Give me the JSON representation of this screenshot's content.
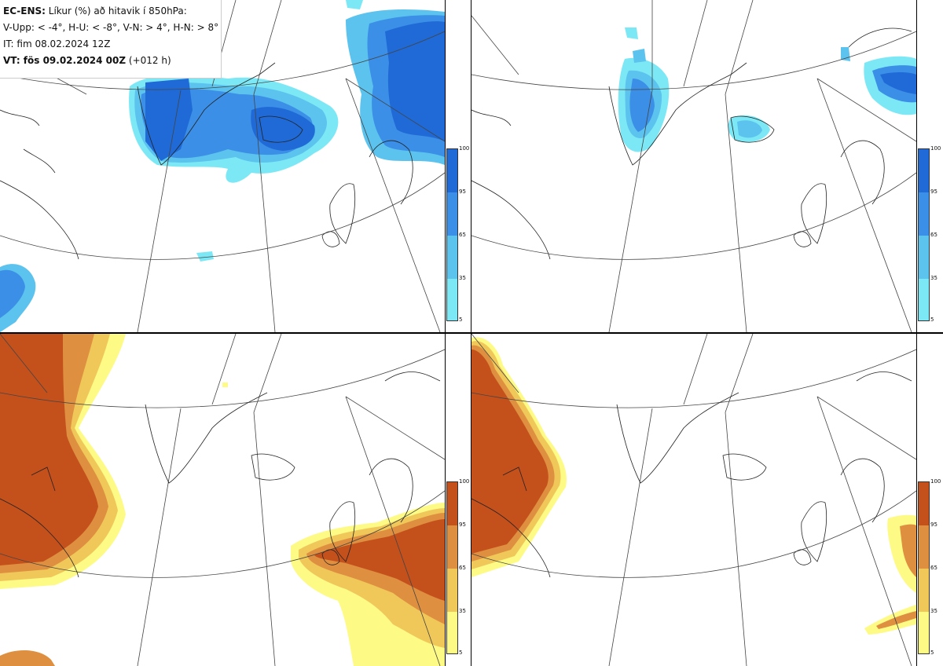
{
  "legend": {
    "line1_label": "EC-ENS:",
    "line1_text": "Líkur (%) að hitavik í 850hPa:",
    "line2": "V-Upp: < -4°, H-U: < -8°, V-N: > 4°, H-N: > 8°",
    "line3": "IT: fim 08.02.2024 12Z",
    "line4_label": "VT: fös 09.02.2024 00Z",
    "line4_text": "(+012 h)"
  },
  "colorbars": {
    "cold": {
      "ticks": [
        "100",
        "95",
        "65",
        "35",
        "5"
      ],
      "colors": [
        "#1f6ad6",
        "#3b8fe6",
        "#5bc3ee",
        "#7de8f5"
      ]
    },
    "warm": {
      "ticks": [
        "100",
        "95",
        "65",
        "35",
        "5"
      ],
      "colors": [
        "#c4501c",
        "#de8f3f",
        "#f0c85a",
        "#fdfb86"
      ]
    }
  },
  "panels": [
    {
      "label": "V-Upp",
      "threshold": "< -4°",
      "palette": "cold"
    },
    {
      "label": "H-U",
      "threshold": "< -8°",
      "palette": "cold"
    },
    {
      "label": "V-N",
      "threshold": "> 4°",
      "palette": "warm"
    },
    {
      "label": "H-N",
      "threshold": "> 8°",
      "palette": "warm"
    }
  ]
}
